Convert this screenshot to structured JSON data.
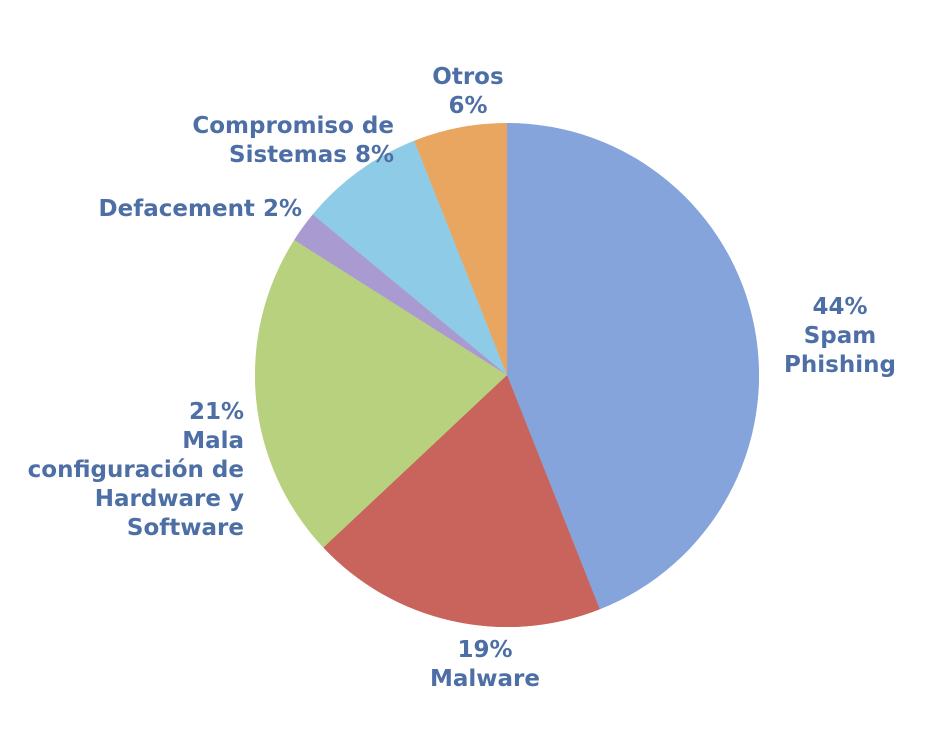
{
  "chart_data": {
    "type": "pie",
    "categories": [
      "Spam Phishing",
      "Malware",
      "Mala configuración de Hardware y Software",
      "Defacement",
      "Compromiso de Sistemas",
      "Otros"
    ],
    "values": [
      44,
      19,
      21,
      2,
      8,
      6
    ],
    "value_labels": [
      "44%",
      "19%",
      "21%",
      "2%",
      "8%",
      "6%"
    ],
    "colors": [
      "#86a4dc",
      "#c8645c",
      "#b7d17f",
      "#a99bd2",
      "#8ecbe6",
      "#e9a660"
    ]
  }
}
